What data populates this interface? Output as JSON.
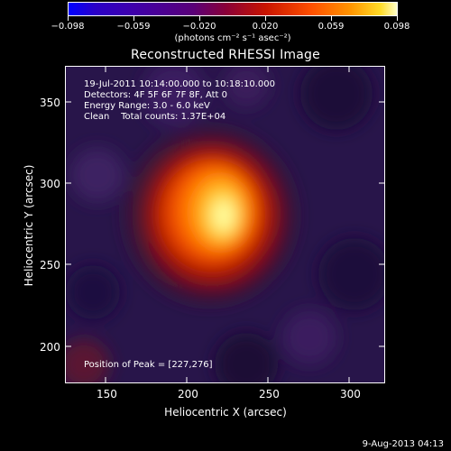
{
  "colorbar": {
    "ticks": [
      "−0.098",
      "−0.059",
      "−0.020",
      "0.020",
      "0.059",
      "0.098"
    ],
    "units": "(photons cm⁻² s⁻¹ asec⁻²)"
  },
  "title": "Reconstructed RHESSI Image",
  "info": {
    "time_range": "19-Jul-2011 10:14:00.000 to 10:18:10.000",
    "detectors": "Detectors: 4F 5F 6F 7F 8F, Att 0",
    "energy_range": "Energy Range: 3.0 - 6.0 keV",
    "method_counts": "Clean    Total counts: 1.37E+04",
    "peak_position": "Position of Peak = [227,276]"
  },
  "axes": {
    "xlabel": "Heliocentric X (arcsec)",
    "ylabel": "Heliocentric Y (arcsec)",
    "x_ticks": [
      "150",
      "200",
      "250",
      "300"
    ],
    "y_ticks": [
      "200",
      "250",
      "300",
      "350"
    ]
  },
  "footer": {
    "date": "9-Aug-2013 04:13"
  },
  "image": {
    "x_range": [
      125,
      320
    ],
    "y_range": [
      178,
      370
    ],
    "peak": [
      227,
      276
    ],
    "value_range": [
      -0.098,
      0.098
    ]
  }
}
